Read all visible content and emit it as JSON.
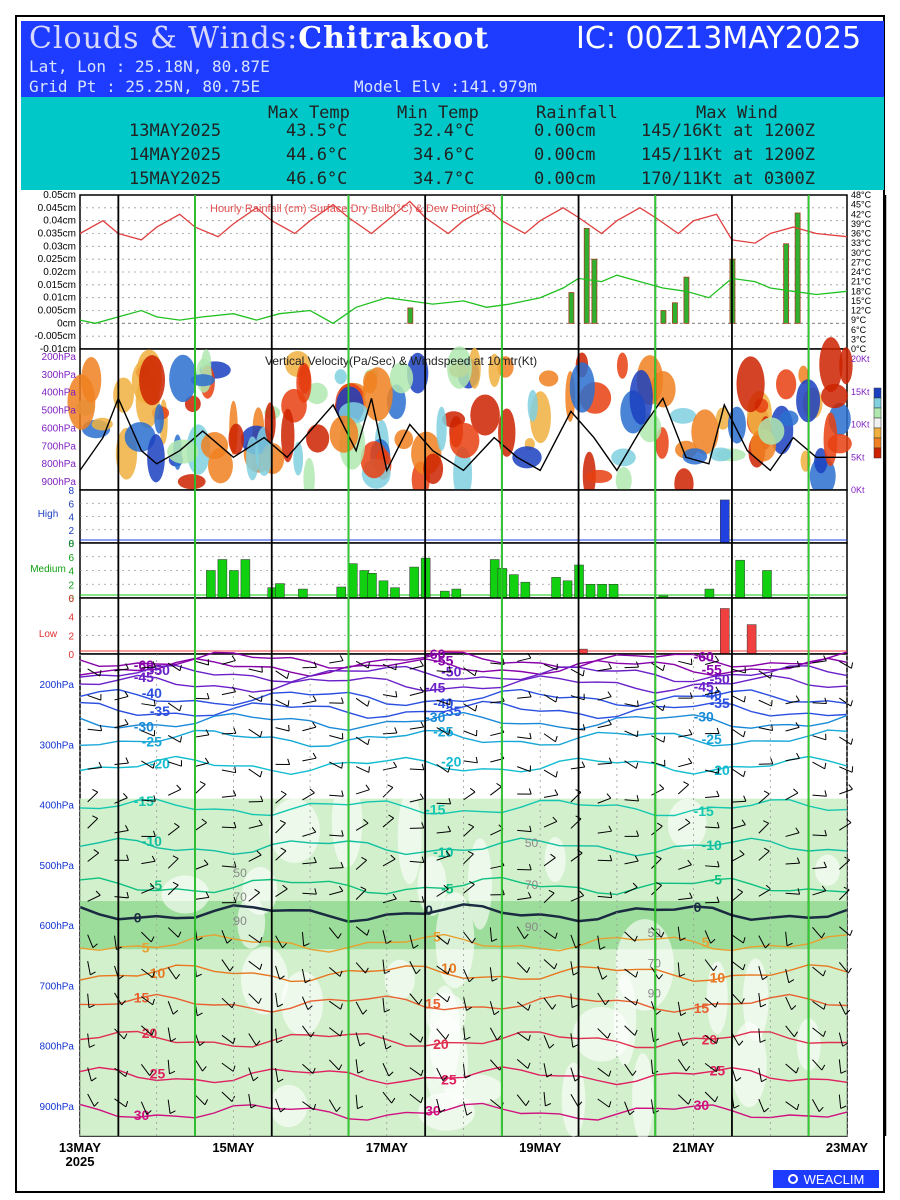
{
  "header": {
    "title_prefix": "Clouds & Winds:",
    "location": "Chitrakoot",
    "ic": "IC: 00Z13MAY2025",
    "latlon": "Lat, Lon : 25.18N, 80.87E",
    "gridpt": "Grid Pt  : 25.25N, 80.75E",
    "elev": "Model Elv :141.979m"
  },
  "stats": {
    "headers": [
      "Max Temp",
      "Min Temp",
      "Rainfall",
      "Max Wind"
    ],
    "rows": [
      {
        "date": "13MAY2025",
        "max": "43.5°C",
        "min": "32.4°C",
        "rain": "0.00cm",
        "wind": "145/16Kt at 1200Z"
      },
      {
        "date": "14MAY2025",
        "max": "44.6°C",
        "min": "34.6°C",
        "rain": "0.00cm",
        "wind": "145/11Kt at 1200Z"
      },
      {
        "date": "15MAY2025",
        "max": "46.6°C",
        "min": "34.7°C",
        "rain": "0.00cm",
        "wind": "170/11Kt at 0300Z"
      }
    ]
  },
  "brand": "WEACLIM",
  "chart_data": {
    "type": "meteogram",
    "x_ticks": [
      "13MAY\n2025",
      "15MAY",
      "17MAY",
      "19MAY",
      "21MAY",
      "23MAY"
    ],
    "x_range_days": [
      0,
      10
    ],
    "panels": [
      {
        "name": "rain",
        "legend": "Hourly Rainfall (cm)  Surface Dry Bulb(°C)  & Dew Point(°C)",
        "left_ticks": [
          "0.05cm",
          "0.045cm",
          "0.04cm",
          "0.035cm",
          "0.03cm",
          "0.025cm",
          "0.02cm",
          "0.015cm",
          "0.01cm",
          "0.005cm",
          "0cm",
          "-0.005cm",
          "-0.01cm"
        ],
        "right_ticks": [
          "48°C",
          "45°C",
          "42°C",
          "39°C",
          "36°C",
          "33°C",
          "30°C",
          "27°C",
          "24°C",
          "21°C",
          "18°C",
          "15°C",
          "12°C",
          "9°C",
          "6°C",
          "3°C",
          "0°C"
        ],
        "rain_bars": [
          [
            4.3,
            0.006
          ],
          [
            6.4,
            0.012
          ],
          [
            6.6,
            0.037
          ],
          [
            6.7,
            0.025
          ],
          [
            7.6,
            0.005
          ],
          [
            7.75,
            0.008
          ],
          [
            7.9,
            0.018
          ],
          [
            8.5,
            0.025
          ],
          [
            9.2,
            0.031
          ],
          [
            9.35,
            0.043
          ]
        ],
        "dry_bulb": [
          [
            0,
            36
          ],
          [
            0.3,
            40
          ],
          [
            0.5,
            36
          ],
          [
            0.8,
            34
          ],
          [
            1,
            38
          ],
          [
            1.3,
            42
          ],
          [
            1.5,
            38
          ],
          [
            1.8,
            35
          ],
          [
            2,
            39
          ],
          [
            2.3,
            44
          ],
          [
            2.5,
            40
          ],
          [
            2.8,
            36
          ],
          [
            3,
            40
          ],
          [
            3.3,
            45
          ],
          [
            3.5,
            41
          ],
          [
            3.8,
            36
          ],
          [
            4,
            40
          ],
          [
            4.3,
            46
          ],
          [
            4.5,
            41
          ],
          [
            4.8,
            36
          ],
          [
            5,
            40
          ],
          [
            5.3,
            44
          ],
          [
            5.5,
            40
          ],
          [
            5.8,
            36
          ],
          [
            6,
            40
          ],
          [
            6.3,
            44
          ],
          [
            6.5,
            41
          ],
          [
            6.8,
            36
          ],
          [
            7,
            40
          ],
          [
            7.3,
            44
          ],
          [
            7.5,
            41
          ],
          [
            7.8,
            36
          ],
          [
            8,
            40
          ],
          [
            8.3,
            42
          ],
          [
            8.5,
            34
          ],
          [
            8.8,
            33
          ],
          [
            9,
            36
          ],
          [
            9.3,
            38
          ],
          [
            9.6,
            36
          ],
          [
            10,
            35
          ]
        ],
        "dew_point": [
          [
            0,
            9
          ],
          [
            0.2,
            8
          ],
          [
            0.5,
            10
          ],
          [
            0.8,
            12
          ],
          [
            1,
            10
          ],
          [
            1.3,
            9
          ],
          [
            1.6,
            10
          ],
          [
            2,
            11
          ],
          [
            2.3,
            9
          ],
          [
            2.6,
            11
          ],
          [
            3,
            12
          ],
          [
            3.3,
            8
          ],
          [
            3.6,
            13
          ],
          [
            4,
            16
          ],
          [
            4.3,
            15
          ],
          [
            4.6,
            14
          ],
          [
            5,
            15
          ],
          [
            5.3,
            13
          ],
          [
            5.6,
            14
          ],
          [
            6,
            16
          ],
          [
            6.3,
            19
          ],
          [
            6.5,
            22
          ],
          [
            6.8,
            21
          ],
          [
            7,
            23
          ],
          [
            7.3,
            21
          ],
          [
            7.6,
            19
          ],
          [
            7.9,
            18
          ],
          [
            8.2,
            16
          ],
          [
            8.5,
            22
          ],
          [
            8.8,
            21
          ],
          [
            9,
            19
          ],
          [
            9.3,
            18
          ],
          [
            9.6,
            17
          ],
          [
            10,
            18
          ]
        ]
      },
      {
        "name": "vertical-velocity",
        "legend": "Vertical Velocity(Pa/Sec) & Windspeed at 10mtr(Kt)",
        "left_ticks": [
          "200hPa",
          "300hPa",
          "400hPa",
          "500hPa",
          "600hPa",
          "700hPa",
          "800hPa",
          "900hPa"
        ],
        "right_ticks": [
          "20Kt",
          "15Kt",
          "10Kt",
          "5Kt",
          "0Kt"
        ],
        "windspeed_kt": [
          [
            0,
            3
          ],
          [
            0.3,
            8
          ],
          [
            0.5,
            14
          ],
          [
            0.8,
            6
          ],
          [
            1,
            4
          ],
          [
            1.3,
            6
          ],
          [
            1.6,
            9
          ],
          [
            2,
            5
          ],
          [
            2.4,
            8
          ],
          [
            2.7,
            5
          ],
          [
            3,
            9
          ],
          [
            3.3,
            13
          ],
          [
            3.6,
            6
          ],
          [
            3.8,
            14
          ],
          [
            4,
            3
          ],
          [
            4.3,
            10
          ],
          [
            4.6,
            6
          ],
          [
            5,
            3
          ],
          [
            5.4,
            8
          ],
          [
            5.7,
            5
          ],
          [
            6,
            3
          ],
          [
            6.4,
            12
          ],
          [
            6.7,
            8
          ],
          [
            7,
            3
          ],
          [
            7.3,
            9
          ],
          [
            7.6,
            14
          ],
          [
            7.9,
            5
          ],
          [
            8.2,
            4
          ],
          [
            8.4,
            13
          ],
          [
            8.7,
            6
          ],
          [
            9,
            3
          ],
          [
            9.3,
            8
          ],
          [
            9.6,
            5
          ],
          [
            10,
            5
          ]
        ]
      },
      {
        "name": "high-cloud",
        "label": "High",
        "ticks": [
          "8",
          "6",
          "4",
          "2",
          "0"
        ],
        "bars": [
          [
            8.4,
            6.5
          ]
        ]
      },
      {
        "name": "medium-cloud",
        "label": "Medium",
        "ticks": [
          "8",
          "6",
          "4",
          "2",
          "0"
        ],
        "bars": [
          [
            1.7,
            4
          ],
          [
            1.85,
            5.6
          ],
          [
            2,
            4
          ],
          [
            2.15,
            5.6
          ],
          [
            2.5,
            1.5
          ],
          [
            2.6,
            2.1
          ],
          [
            2.9,
            1.3
          ],
          [
            3.4,
            1.6
          ],
          [
            3.55,
            5
          ],
          [
            3.7,
            4
          ],
          [
            3.8,
            3.6
          ],
          [
            3.95,
            2.5
          ],
          [
            4.1,
            1.5
          ],
          [
            4.35,
            4.5
          ],
          [
            4.5,
            5.8
          ],
          [
            4.75,
            1
          ],
          [
            4.9,
            1.3
          ],
          [
            5.4,
            5.6
          ],
          [
            5.5,
            4.3
          ],
          [
            5.65,
            3.4
          ],
          [
            5.8,
            2.3
          ],
          [
            6.2,
            3
          ],
          [
            6.35,
            2.5
          ],
          [
            6.5,
            4.8
          ],
          [
            6.65,
            2
          ],
          [
            6.8,
            2
          ],
          [
            6.95,
            2
          ],
          [
            7.6,
            0.3
          ],
          [
            8.2,
            1.3
          ],
          [
            8.6,
            5.5
          ],
          [
            8.95,
            4
          ]
        ]
      },
      {
        "name": "low-cloud",
        "label": "Low",
        "ticks": [
          "6",
          "4",
          "2",
          "0"
        ],
        "bars": [
          [
            8.4,
            6.5
          ],
          [
            8.75,
            4.2
          ],
          [
            6.55,
            0.7
          ]
        ]
      },
      {
        "name": "winds-temperature",
        "left_ticks": [
          "200hPa",
          "300hPa",
          "400hPa",
          "500hPa",
          "600hPa",
          "700hPa",
          "800hPa",
          "900hPa"
        ],
        "isotherms": [
          {
            "label": "-60",
            "color": "#8800aa",
            "p": 160
          },
          {
            "label": "-55",
            "color": "#8800aa",
            "p": 172
          },
          {
            "label": "-50",
            "color": "#6a20c8",
            "p": 183
          },
          {
            "label": "-45",
            "color": "#6a20c8",
            "p": 200
          },
          {
            "label": "-40",
            "color": "#2a4fe0",
            "p": 223
          },
          {
            "label": "-35",
            "color": "#2a4fe0",
            "p": 243
          },
          {
            "label": "-30",
            "color": "#1a8ad8",
            "p": 262
          },
          {
            "label": "-25",
            "color": "#18a8d8",
            "p": 290
          },
          {
            "label": "-20",
            "color": "#10bcd0",
            "p": 335
          },
          {
            "label": "-15",
            "color": "#14c8b0",
            "p": 405
          },
          {
            "label": "-10",
            "color": "#10c0a0",
            "p": 470
          },
          {
            "label": "-5",
            "color": "#10c080",
            "p": 535
          },
          {
            "label": "0",
            "color": "#1a2a40",
            "p": 580
          },
          {
            "label": "5",
            "color": "#e8a030",
            "p": 630
          },
          {
            "label": "10",
            "color": "#e87820",
            "p": 680
          },
          {
            "label": "15",
            "color": "#e86030",
            "p": 730
          },
          {
            "label": "20",
            "color": "#e03050",
            "p": 790
          },
          {
            "label": "25",
            "color": "#e02060",
            "p": 850
          },
          {
            "label": "30",
            "color": "#d01080",
            "p": 910
          }
        ],
        "humidity_labels": [
          "50",
          "70",
          "90"
        ]
      }
    ]
  }
}
